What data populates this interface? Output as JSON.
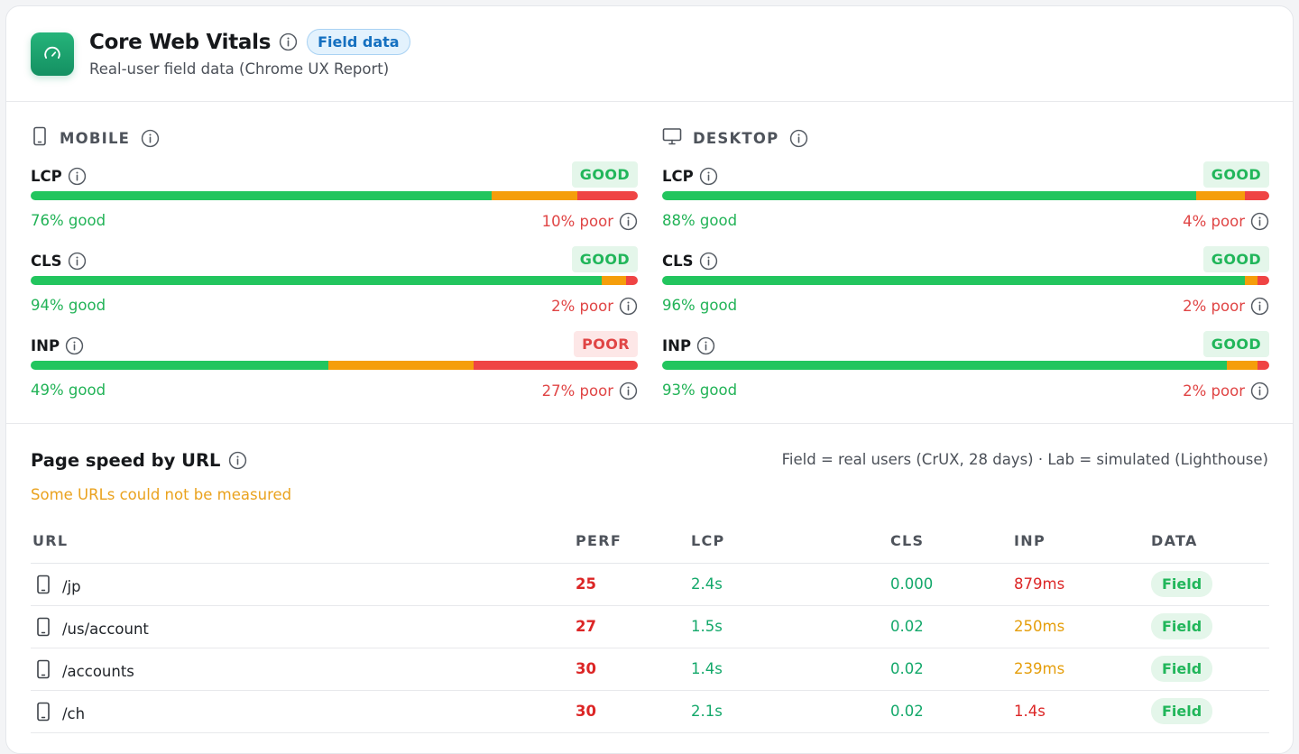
{
  "header": {
    "title": "Core Web Vitals",
    "badge": "Field data",
    "subtitle": "Real-user field data (Chrome UX Report)"
  },
  "devices": [
    {
      "label": "MOBILE",
      "icon": "phone-icon",
      "metrics": [
        {
          "name": "LCP",
          "status": "GOOD",
          "good_pct": 76,
          "ni_pct": 14,
          "poor_pct": 10,
          "good_text": "76% good",
          "poor_text": "10% poor"
        },
        {
          "name": "CLS",
          "status": "GOOD",
          "good_pct": 94,
          "ni_pct": 4,
          "poor_pct": 2,
          "good_text": "94% good",
          "poor_text": "2% poor"
        },
        {
          "name": "INP",
          "status": "POOR",
          "good_pct": 49,
          "ni_pct": 24,
          "poor_pct": 27,
          "good_text": "49% good",
          "poor_text": "27% poor"
        }
      ]
    },
    {
      "label": "DESKTOP",
      "icon": "monitor-icon",
      "metrics": [
        {
          "name": "LCP",
          "status": "GOOD",
          "good_pct": 88,
          "ni_pct": 8,
          "poor_pct": 4,
          "good_text": "88% good",
          "poor_text": "4% poor"
        },
        {
          "name": "CLS",
          "status": "GOOD",
          "good_pct": 96,
          "ni_pct": 2,
          "poor_pct": 2,
          "good_text": "96% good",
          "poor_text": "2% poor"
        },
        {
          "name": "INP",
          "status": "GOOD",
          "good_pct": 93,
          "ni_pct": 5,
          "poor_pct": 2,
          "good_text": "93% good",
          "poor_text": "2% poor"
        }
      ]
    }
  ],
  "pagespeed": {
    "title": "Page speed by URL",
    "legend": "Field = real users (CrUX, 28 days) · Lab = simulated (Lighthouse)",
    "warning": "Some URLs could not be measured",
    "columns": [
      "URL",
      "PERF",
      "LCP",
      "CLS",
      "INP",
      "DATA"
    ],
    "rows": [
      {
        "url": "/jp",
        "perf": "25",
        "lcp": "2.4s",
        "lcp_status": "green",
        "cls": "0.000",
        "cls_status": "green",
        "inp": "879ms",
        "inp_status": "red",
        "data": "Field"
      },
      {
        "url": "/us/account",
        "perf": "27",
        "lcp": "1.5s",
        "lcp_status": "green",
        "cls": "0.02",
        "cls_status": "green",
        "inp": "250ms",
        "inp_status": "amber",
        "data": "Field"
      },
      {
        "url": "/accounts",
        "perf": "30",
        "lcp": "1.4s",
        "lcp_status": "green",
        "cls": "0.02",
        "cls_status": "green",
        "inp": "239ms",
        "inp_status": "amber",
        "data": "Field"
      },
      {
        "url": "/ch",
        "perf": "30",
        "lcp": "2.1s",
        "lcp_status": "green",
        "cls": "0.02",
        "cls_status": "green",
        "inp": "1.4s",
        "inp_status": "red",
        "data": "Field"
      }
    ]
  },
  "colors": {
    "accent": "#1a9e6b",
    "good": "#22c55e",
    "needs_improvement": "#f59e0b",
    "poor": "#ef4444"
  }
}
